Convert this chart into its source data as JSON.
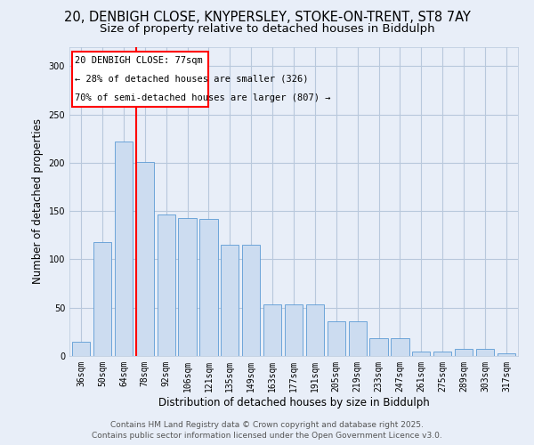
{
  "title_line1": "20, DENBIGH CLOSE, KNYPERSLEY, STOKE-ON-TRENT, ST8 7AY",
  "title_line2": "Size of property relative to detached houses in Biddulph",
  "xlabel": "Distribution of detached houses by size in Biddulph",
  "ylabel": "Number of detached properties",
  "categories": [
    "36sqm",
    "50sqm",
    "64sqm",
    "78sqm",
    "92sqm",
    "106sqm",
    "121sqm",
    "135sqm",
    "149sqm",
    "163sqm",
    "177sqm",
    "191sqm",
    "205sqm",
    "219sqm",
    "233sqm",
    "247sqm",
    "261sqm",
    "275sqm",
    "289sqm",
    "303sqm",
    "317sqm"
  ],
  "values": [
    15,
    118,
    222,
    201,
    146,
    143,
    142,
    115,
    115,
    53,
    53,
    53,
    36,
    36,
    18,
    18,
    5,
    5,
    7,
    7,
    3
  ],
  "bar_color": "#ccdcf0",
  "bar_edge_color": "#5b9bd5",
  "grid_color": "#b8c8dc",
  "background_color": "#e8eef8",
  "annotation_text_line1": "20 DENBIGH CLOSE: 77sqm",
  "annotation_text_line2": "← 28% of detached houses are smaller (326)",
  "annotation_text_line3": "70% of semi-detached houses are larger (807) →",
  "vline_x_index": 3,
  "footer_line1": "Contains HM Land Registry data © Crown copyright and database right 2025.",
  "footer_line2": "Contains public sector information licensed under the Open Government Licence v3.0.",
  "ylim_max": 320,
  "yticks": [
    0,
    50,
    100,
    150,
    200,
    250,
    300
  ],
  "title_fontsize": 10.5,
  "subtitle_fontsize": 9.5,
  "axis_label_fontsize": 8.5,
  "tick_fontsize": 7,
  "footer_fontsize": 6.5,
  "ann_fontsize": 7.5
}
